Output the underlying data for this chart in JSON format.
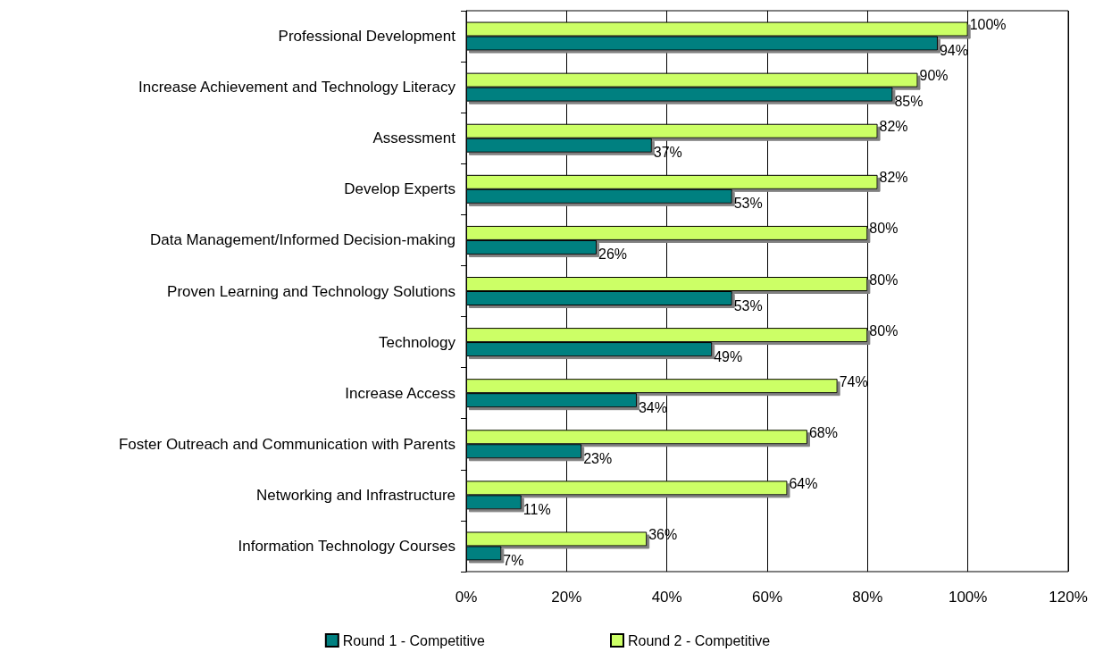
{
  "chart_data": {
    "type": "bar",
    "orientation": "horizontal",
    "categories": [
      "Professional Development",
      "Increase Achievement and Technology Literacy",
      "Assessment",
      "Develop Experts",
      "Data Management/Informed Decision-making",
      "Proven Learning and Technology Solutions",
      "Technology",
      "Increase Access",
      "Foster Outreach and Communication with Parents",
      "Networking and Infrastructure",
      "Information Technology Courses"
    ],
    "series": [
      {
        "name": "Round 1 - Competitive",
        "color": "#008080",
        "values": [
          94,
          85,
          37,
          53,
          26,
          53,
          49,
          34,
          23,
          11,
          7
        ],
        "value_labels": [
          "94%",
          "85%",
          "37%",
          "53%",
          "26%",
          "53%",
          "49%",
          "34%",
          "23%",
          "11%",
          "7%"
        ]
      },
      {
        "name": "Round 2 - Competitive",
        "color": "#ccff66",
        "values": [
          100,
          90,
          82,
          82,
          80,
          80,
          80,
          74,
          68,
          64,
          36
        ],
        "value_labels": [
          "100%",
          "90%",
          "82%",
          "82%",
          "80%",
          "80%",
          "80%",
          "74%",
          "68%",
          "64%",
          "36%"
        ]
      }
    ],
    "xlim": [
      0,
      120
    ],
    "xticks": [
      {
        "value": 0,
        "label": "0%"
      },
      {
        "value": 20,
        "label": "20%"
      },
      {
        "value": 40,
        "label": "40%"
      },
      {
        "value": 60,
        "label": "60%"
      },
      {
        "value": 80,
        "label": "80%"
      },
      {
        "value": 100,
        "label": "100%"
      },
      {
        "value": 120,
        "label": "120%"
      }
    ],
    "grid": "x",
    "legend": "bottom"
  }
}
